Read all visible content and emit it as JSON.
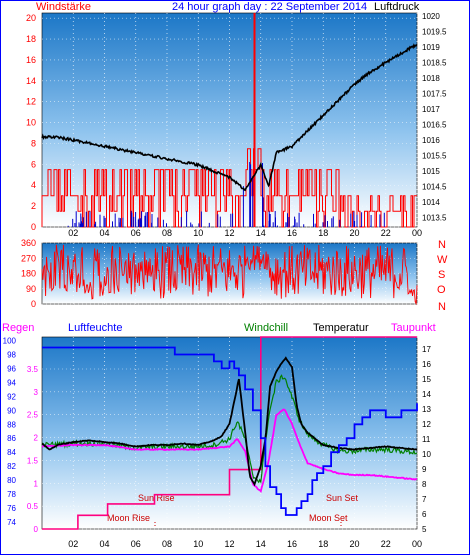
{
  "header": {
    "left_label": "Windstärke",
    "title": "24 hour graph day : 22 September 2014",
    "right_label": "Luftdruck"
  },
  "colors": {
    "frame": "#0000ff",
    "bg_top": "#1c77c7",
    "bg_bottom": "#ffffff",
    "wind": "#ff0000",
    "gust": "#0000cc",
    "pressure": "#000000",
    "direction": "#ff0000",
    "humidity": "#0000ff",
    "windchill": "#008000",
    "temperature": "#000000",
    "dewpoint": "#ff00ff",
    "rain": "#ff0080",
    "astro": "#cc0000"
  },
  "x_ticks": [
    "02",
    "04",
    "06",
    "08",
    "10",
    "12",
    "14",
    "16",
    "18",
    "20",
    "22",
    "00"
  ],
  "chart_data": [
    {
      "type": "bar+line",
      "left_axis": {
        "label": "Windstärke",
        "ticks": [
          "0",
          "2",
          "4",
          "6",
          "8",
          "10",
          "12",
          "14",
          "16",
          "18",
          "20"
        ],
        "range": [
          0,
          20.5
        ]
      },
      "right_axis": {
        "label": "Luftdruck",
        "ticks": [
          "1013.5",
          "1014",
          "1014.5",
          "1015",
          "1015.5",
          "1016",
          "1016.5",
          "1017",
          "1017.5",
          "1018",
          "1018.5",
          "1019",
          "1019.5",
          "1020"
        ],
        "range": [
          1013.2,
          1020.1
        ]
      },
      "wind_levels": [
        0,
        1.5,
        3,
        5.5,
        7.5
      ],
      "series": [
        {
          "name": "wind_speed_peak",
          "x": 13.6,
          "y": 20.5
        },
        {
          "name": "pressure",
          "hours": [
            0,
            1,
            2,
            3,
            4,
            5,
            6,
            7,
            8,
            9,
            10,
            11,
            12,
            12.5,
            13,
            13.5,
            14,
            14.5,
            15,
            16,
            17,
            18,
            19,
            20,
            21,
            22,
            23,
            24
          ],
          "values": [
            1016.1,
            1016.1,
            1016.0,
            1015.9,
            1015.8,
            1015.7,
            1015.6,
            1015.5,
            1015.4,
            1015.3,
            1015.2,
            1015.0,
            1014.8,
            1014.6,
            1014.4,
            1014.8,
            1015.2,
            1014.5,
            1015.6,
            1015.8,
            1016.3,
            1016.8,
            1017.3,
            1017.8,
            1018.2,
            1018.5,
            1018.8,
            1019.1
          ]
        }
      ]
    },
    {
      "type": "line",
      "left_axis": {
        "label": "",
        "ticks": [
          "0",
          "90",
          "180",
          "270",
          "360"
        ],
        "range": [
          0,
          360
        ]
      },
      "right_axis": {
        "label": "",
        "ticks": [
          "N",
          "W",
          "S",
          "O",
          "N"
        ]
      },
      "series": [
        {
          "name": "wind_direction"
        }
      ]
    },
    {
      "type": "line",
      "legend": [
        "Regen",
        "Luftfeuchte",
        "Windchill",
        "Temperatur",
        "Taupunkt"
      ],
      "left_axis_humidity": {
        "label": "Luftfeuchte",
        "ticks": [
          "74",
          "76",
          "78",
          "80",
          "82",
          "84",
          "86",
          "88",
          "90",
          "92",
          "94",
          "96",
          "98",
          "100"
        ],
        "range": [
          73,
          100.5
        ]
      },
      "left_axis_rain": {
        "label": "Regen",
        "ticks": [
          "0",
          "0.5",
          "1",
          "1.5",
          "2",
          "2.5",
          "3",
          "3.5"
        ],
        "range": [
          0,
          4.2
        ]
      },
      "right_axis": {
        "label": "Temperatur",
        "ticks": [
          "5",
          "6",
          "7",
          "8",
          "9",
          "10",
          "11",
          "12",
          "13",
          "14",
          "15",
          "16",
          "17"
        ],
        "range": [
          5,
          17.8
        ]
      },
      "annotations": [
        "Sun Rise",
        "Sun Set",
        "Moon Rise",
        "Moon Set"
      ],
      "series": [
        {
          "name": "Luftfeuchte",
          "hours": [
            0,
            8,
            8.5,
            10,
            11,
            11.5,
            12,
            12.3,
            12.6,
            13,
            13.5,
            14,
            14.3,
            14.6,
            15,
            15.3,
            15.6,
            16,
            16.3,
            16.6,
            17,
            17.3,
            17.6,
            18,
            18.5,
            19,
            19.5,
            20,
            20.5,
            21,
            21.5,
            22,
            22.5,
            23,
            23.5,
            24
          ],
          "values": [
            99,
            99,
            98,
            98,
            97,
            96,
            97,
            96,
            95,
            93,
            90,
            86,
            82,
            79,
            78,
            76,
            75,
            75,
            76,
            77,
            78,
            80,
            81,
            82,
            84,
            85,
            86,
            88,
            89,
            90,
            90,
            89,
            89,
            90,
            90,
            91
          ]
        },
        {
          "name": "Temperatur",
          "hours": [
            0,
            0.5,
            1,
            2,
            3,
            4,
            5,
            6,
            7,
            8,
            9,
            10,
            11,
            11.5,
            12,
            12.3,
            12.6,
            13,
            13.3,
            13.6,
            14,
            14.3,
            14.6,
            15,
            15.3,
            15.6,
            16,
            16.3,
            16.6,
            17,
            17.5,
            18,
            19,
            20,
            21,
            22,
            23,
            24
          ],
          "values": [
            10.7,
            10.3,
            10.6,
            10.8,
            10.9,
            10.8,
            10.7,
            10.5,
            10.6,
            10.6,
            10.7,
            10.6,
            10.9,
            11.2,
            12.0,
            13.5,
            15.0,
            11.5,
            8.5,
            8.0,
            9.2,
            11.0,
            14.5,
            15.5,
            16.0,
            16.4,
            15.8,
            13.2,
            12.0,
            11.4,
            11.0,
            10.6,
            10.4,
            10.3,
            10.4,
            10.5,
            10.4,
            10.3
          ]
        },
        {
          "name": "Windchill",
          "hours": [
            0,
            2,
            4,
            6,
            8,
            10,
            11,
            12,
            12.5,
            13,
            13.5,
            14,
            14.5,
            15,
            15.5,
            16,
            16.5,
            17,
            18,
            19,
            20,
            21,
            22,
            23,
            24
          ],
          "values": [
            10.6,
            10.7,
            10.7,
            10.4,
            10.5,
            10.5,
            10.6,
            11.0,
            12.2,
            11.0,
            8.5,
            8.2,
            12.5,
            14.8,
            15.2,
            13.8,
            12.2,
            11.3,
            10.6,
            10.2,
            10.2,
            10.3,
            10.3,
            10.2,
            10.1
          ]
        },
        {
          "name": "Taupunkt",
          "hours": [
            0,
            2,
            4,
            6,
            8,
            10,
            11,
            12,
            12.5,
            13,
            13.5,
            14,
            14.5,
            15,
            15.5,
            16,
            16.5,
            17,
            18,
            19,
            20,
            21,
            22,
            23,
            24
          ],
          "values": [
            10.5,
            10.6,
            10.6,
            10.3,
            10.3,
            10.3,
            10.4,
            10.5,
            11.0,
            10.2,
            8.0,
            7.5,
            9.5,
            12.6,
            13.0,
            12.0,
            10.6,
            9.4,
            9.0,
            8.7,
            8.6,
            8.6,
            8.5,
            8.4,
            8.3
          ]
        },
        {
          "name": "Regen",
          "hours": [
            0,
            2.3,
            2.3,
            4.2,
            4.2,
            7.2,
            7.2,
            12.0,
            12.0,
            14.0,
            14.0,
            24
          ],
          "values": [
            0,
            0,
            0.3,
            0.3,
            0.55,
            0.55,
            0.75,
            0.75,
            1.3,
            1.3,
            4.2,
            4.2
          ]
        }
      ]
    }
  ]
}
